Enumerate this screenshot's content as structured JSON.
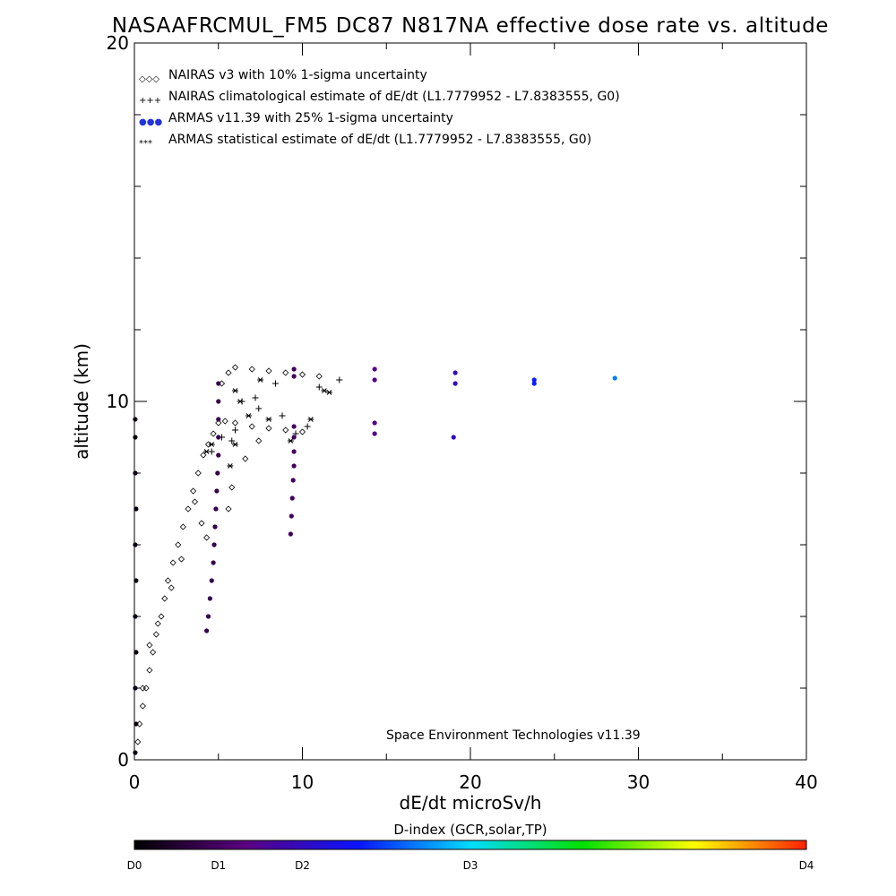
{
  "chart_data": {
    "type": "scatter",
    "title": "NASAAFRCMUL_FM5 DC87 N817NA effective dose rate vs. altitude",
    "xlabel": "dE/dt microSv/h",
    "ylabel": "altitude (km)",
    "xlim": [
      0,
      40
    ],
    "ylim": [
      0,
      20
    ],
    "x_ticks": [
      "0",
      "10",
      "20",
      "30",
      "40"
    ],
    "y_ticks": [
      "0",
      "10",
      "20"
    ],
    "grid": false,
    "legend_position": "top-left",
    "legend": [
      {
        "symbol": "◇◇◇",
        "label": "NAIRAS v3 with 10% 1-sigma uncertainty",
        "color": "#000000"
      },
      {
        "symbol": "+++",
        "label": "NAIRAS climatological estimate of dE/dt (L1.7779952 - L7.8383555, G0)",
        "color": "#000000"
      },
      {
        "symbol": "●●●",
        "label": "ARMAS v11.39 with 25% 1-sigma uncertainty",
        "color": "#2233dd"
      },
      {
        "symbol": "***",
        "label": "ARMAS statistical estimate of dE/dt (L1.7779952 - L7.8383555, G0)",
        "color": "#000000"
      }
    ],
    "credit": "Space Environment Technologies v11.39",
    "colorbar": {
      "title": "D-index (GCR,solar,TP)",
      "labels": [
        "D0",
        "D1",
        "D2",
        "D3",
        "D4"
      ],
      "label_positions": [
        0,
        0.125,
        0.25,
        0.5,
        1.0
      ],
      "colors": [
        "#000000",
        "#5a0080",
        "#0a14ff",
        "#00dcff",
        "#00e000",
        "#ffff00",
        "#ff2000"
      ]
    },
    "series": [
      {
        "name": "NAIRAS v3 with 10% 1-sigma uncertainty",
        "marker": "diamond",
        "points": [
          [
            0.2,
            0.5
          ],
          [
            0.3,
            1.0
          ],
          [
            0.5,
            1.5
          ],
          [
            0.7,
            2.0
          ],
          [
            0.9,
            2.5
          ],
          [
            1.1,
            3.0
          ],
          [
            1.3,
            3.5
          ],
          [
            1.6,
            4.0
          ],
          [
            1.8,
            4.5
          ],
          [
            2.0,
            5.0
          ],
          [
            2.3,
            5.5
          ],
          [
            2.6,
            6.0
          ],
          [
            2.9,
            6.5
          ],
          [
            3.2,
            7.0
          ],
          [
            3.5,
            7.5
          ],
          [
            3.8,
            8.0
          ],
          [
            4.1,
            8.5
          ],
          [
            4.4,
            8.8
          ],
          [
            4.7,
            9.1
          ],
          [
            5.0,
            9.4
          ],
          [
            5.4,
            9.45
          ],
          [
            6.0,
            9.4
          ],
          [
            7.0,
            9.3
          ],
          [
            8.0,
            9.25
          ],
          [
            9.0,
            9.2
          ],
          [
            10.0,
            9.15
          ],
          [
            5.2,
            10.5
          ],
          [
            5.6,
            10.8
          ],
          [
            6.0,
            10.95
          ],
          [
            7.0,
            10.9
          ],
          [
            8.0,
            10.85
          ],
          [
            9.0,
            10.8
          ],
          [
            10.0,
            10.75
          ],
          [
            11.0,
            10.7
          ],
          [
            0.5,
            2.0
          ],
          [
            0.9,
            3.2
          ],
          [
            1.4,
            3.8
          ],
          [
            2.2,
            4.8
          ],
          [
            2.8,
            5.6
          ],
          [
            3.6,
            7.2
          ],
          [
            4.0,
            6.6
          ],
          [
            4.3,
            6.2
          ],
          [
            5.6,
            7.0
          ],
          [
            5.8,
            7.6
          ],
          [
            6.6,
            8.4
          ],
          [
            7.4,
            8.9
          ]
        ]
      },
      {
        "name": "NAIRAS climatological estimate of dE/dt (L1.7779952 - L7.8383555, G0)",
        "marker": "plus",
        "points": [
          [
            4.6,
            8.6
          ],
          [
            5.2,
            9.0
          ],
          [
            5.8,
            8.9
          ],
          [
            6.4,
            10.0
          ],
          [
            7.2,
            10.1
          ],
          [
            7.4,
            9.8
          ],
          [
            8.4,
            10.5
          ],
          [
            8.8,
            9.6
          ],
          [
            9.6,
            9.1
          ],
          [
            10.3,
            9.3
          ],
          [
            11.0,
            10.4
          ],
          [
            6.0,
            9.2
          ],
          [
            12.2,
            10.6
          ]
        ]
      },
      {
        "name": "ARMAS statistical estimate of dE/dt (L1.7779952 - L7.8383555, G0)",
        "marker": "asterisk",
        "points": [
          [
            4.3,
            8.6
          ],
          [
            4.6,
            8.8
          ],
          [
            5.7,
            8.2
          ],
          [
            6.0,
            10.3
          ],
          [
            6.3,
            10.0
          ],
          [
            6.8,
            9.6
          ],
          [
            7.5,
            10.6
          ],
          [
            8.0,
            9.5
          ],
          [
            9.3,
            8.9
          ],
          [
            10.5,
            9.5
          ],
          [
            11.3,
            10.3
          ],
          [
            11.6,
            10.25
          ],
          [
            6.0,
            8.8
          ]
        ]
      },
      {
        "name": "ARMAS v11.39 with 25% 1-sigma uncertainty",
        "marker": "dot",
        "points": [
          [
            0.05,
            0.2,
            0.02
          ],
          [
            0.1,
            1.0,
            0.02
          ],
          [
            0.05,
            2.0,
            0.02
          ],
          [
            0.1,
            3.0,
            0.02
          ],
          [
            0.05,
            4.0,
            0.02
          ],
          [
            0.1,
            5.0,
            0.02
          ],
          [
            0.05,
            6.0,
            0.02
          ],
          [
            0.1,
            7.0,
            0.02
          ],
          [
            0.05,
            8.0,
            0.02
          ],
          [
            0.05,
            9.0,
            0.02
          ],
          [
            0.05,
            9.5,
            0.02
          ],
          [
            4.3,
            3.6,
            0.1
          ],
          [
            4.4,
            4.0,
            0.1
          ],
          [
            4.5,
            4.5,
            0.1
          ],
          [
            4.6,
            5.0,
            0.1
          ],
          [
            4.7,
            5.5,
            0.1
          ],
          [
            4.75,
            6.0,
            0.1
          ],
          [
            4.8,
            6.5,
            0.1
          ],
          [
            4.85,
            7.0,
            0.1
          ],
          [
            4.9,
            7.5,
            0.1
          ],
          [
            4.95,
            8.0,
            0.1
          ],
          [
            5.0,
            8.5,
            0.1
          ],
          [
            5.0,
            9.0,
            0.1
          ],
          [
            5.0,
            9.5,
            0.1
          ],
          [
            5.0,
            10.0,
            0.1
          ],
          [
            5.0,
            10.5,
            0.1
          ],
          [
            9.3,
            6.3,
            0.12
          ],
          [
            9.35,
            6.8,
            0.12
          ],
          [
            9.4,
            7.3,
            0.12
          ],
          [
            9.45,
            7.8,
            0.12
          ],
          [
            9.5,
            8.2,
            0.12
          ],
          [
            9.5,
            8.6,
            0.12
          ],
          [
            9.5,
            9.0,
            0.12
          ],
          [
            9.5,
            9.3,
            0.12
          ],
          [
            9.5,
            10.7,
            0.12
          ],
          [
            9.5,
            10.9,
            0.12
          ],
          [
            14.3,
            9.1,
            0.18
          ],
          [
            14.3,
            9.4,
            0.18
          ],
          [
            14.3,
            10.6,
            0.18
          ],
          [
            14.3,
            10.9,
            0.18
          ],
          [
            19.0,
            9.0,
            0.25
          ],
          [
            19.1,
            10.5,
            0.25
          ],
          [
            19.1,
            10.8,
            0.25
          ],
          [
            23.8,
            10.5,
            0.34
          ],
          [
            23.8,
            10.6,
            0.34
          ],
          [
            28.6,
            10.65,
            0.42
          ]
        ]
      }
    ]
  }
}
